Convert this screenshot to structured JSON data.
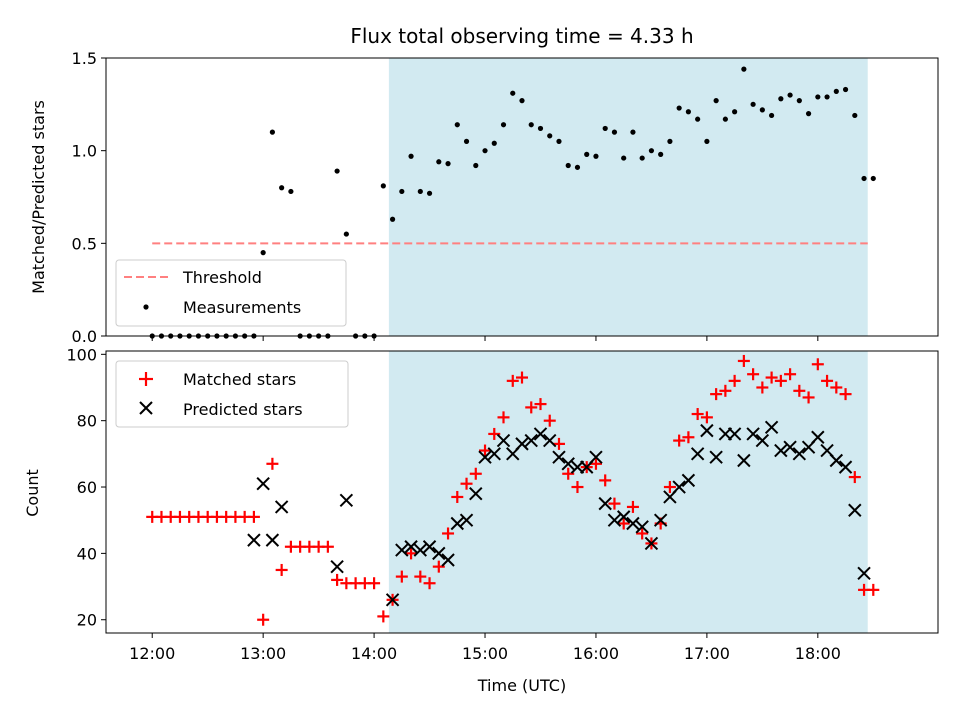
{
  "chart_data": [
    {
      "type": "scatter",
      "title": "Flux total observing time = 4.33 h",
      "xlabel": "",
      "ylabel": "Matched/Predicted stars",
      "xlim": [
        "11:35",
        "19:05"
      ],
      "ylim": [
        0,
        1.5
      ],
      "yticks": [
        0.0,
        0.5,
        1.0,
        1.5
      ],
      "ytick_labels": [
        "0.0",
        "0.5",
        "1.0",
        "1.5"
      ],
      "xticks": [
        "12:00",
        "13:00",
        "14:00",
        "15:00",
        "16:00",
        "17:00",
        "18:00"
      ],
      "shaded_span": {
        "start": "14:08",
        "end": "18:27",
        "color": "#add8e6"
      },
      "threshold": {
        "name": "Threshold",
        "value": 0.5,
        "start": "12:00",
        "end": "18:27",
        "color": "#ff8080"
      },
      "legend": {
        "placement": "lower-left",
        "entries": [
          "Threshold",
          "Measurements"
        ]
      },
      "series": [
        {
          "name": "Measurements",
          "marker": "dot",
          "color": "#000000",
          "x": [
            "12:00",
            "12:05",
            "12:10",
            "12:15",
            "12:20",
            "12:25",
            "12:30",
            "12:35",
            "12:40",
            "12:45",
            "12:50",
            "12:55",
            "13:00",
            "13:05",
            "13:10",
            "13:15",
            "13:20",
            "13:25",
            "13:30",
            "13:35",
            "13:40",
            "13:45",
            "13:50",
            "13:55",
            "14:00",
            "14:05",
            "14:10",
            "14:15",
            "14:20",
            "14:25",
            "14:30",
            "14:35",
            "14:40",
            "14:45",
            "14:50",
            "14:55",
            "15:00",
            "15:05",
            "15:10",
            "15:15",
            "15:20",
            "15:25",
            "15:30",
            "15:35",
            "15:40",
            "15:45",
            "15:50",
            "15:55",
            "16:00",
            "16:05",
            "16:10",
            "16:15",
            "16:20",
            "16:25",
            "16:30",
            "16:35",
            "16:40",
            "16:45",
            "16:50",
            "16:55",
            "17:00",
            "17:05",
            "17:10",
            "17:15",
            "17:20",
            "17:25",
            "17:30",
            "17:35",
            "17:40",
            "17:45",
            "17:50",
            "17:55",
            "18:00",
            "18:05",
            "18:10",
            "18:15",
            "18:20",
            "18:25",
            "18:30"
          ],
          "y": [
            0,
            0,
            0,
            0,
            0,
            0,
            0,
            0,
            0,
            0,
            0,
            0,
            0.45,
            1.1,
            0.8,
            0.78,
            0,
            0,
            0,
            0,
            0.89,
            0.55,
            0,
            0,
            0,
            0.81,
            0.63,
            0.78,
            0.97,
            0.78,
            0.77,
            0.94,
            0.93,
            1.14,
            1.05,
            0.92,
            1.0,
            1.04,
            1.14,
            1.31,
            1.27,
            1.14,
            1.12,
            1.08,
            1.05,
            0.92,
            0.91,
            0.98,
            0.97,
            1.12,
            1.1,
            0.96,
            1.1,
            0.96,
            1.0,
            0.98,
            1.05,
            1.23,
            1.21,
            1.17,
            1.05,
            1.27,
            1.17,
            1.21,
            1.44,
            1.25,
            1.22,
            1.19,
            1.28,
            1.3,
            1.27,
            1.2,
            1.29,
            1.29,
            1.32,
            1.33,
            1.19,
            0.85,
            0.85
          ]
        }
      ]
    },
    {
      "type": "scatter",
      "title": "",
      "xlabel": "Time (UTC)",
      "ylabel": "Count",
      "xlim": [
        "11:35",
        "19:05"
      ],
      "ylim": [
        16,
        101
      ],
      "yticks": [
        20,
        40,
        60,
        80,
        100
      ],
      "ytick_labels": [
        "20",
        "40",
        "60",
        "80",
        "100"
      ],
      "xticks": [
        "12:00",
        "13:00",
        "14:00",
        "15:00",
        "16:00",
        "17:00",
        "18:00"
      ],
      "xtick_labels": [
        "12:00",
        "13:00",
        "14:00",
        "15:00",
        "16:00",
        "17:00",
        "18:00"
      ],
      "shaded_span": {
        "start": "14:08",
        "end": "18:27",
        "color": "#add8e6"
      },
      "legend": {
        "placement": "upper-left",
        "entries": [
          "Matched stars",
          "Predicted stars"
        ]
      },
      "series": [
        {
          "name": "Matched stars",
          "marker": "plus",
          "color": "#ff0000",
          "x": [
            "12:00",
            "12:05",
            "12:10",
            "12:15",
            "12:20",
            "12:25",
            "12:30",
            "12:35",
            "12:40",
            "12:45",
            "12:50",
            "12:55",
            "13:00",
            "13:05",
            "13:10",
            "13:15",
            "13:20",
            "13:25",
            "13:30",
            "13:35",
            "13:40",
            "13:45",
            "13:50",
            "13:55",
            "14:00",
            "14:05",
            "14:10",
            "14:15",
            "14:20",
            "14:25",
            "14:30",
            "14:35",
            "14:40",
            "14:45",
            "14:50",
            "14:55",
            "15:00",
            "15:05",
            "15:10",
            "15:15",
            "15:20",
            "15:25",
            "15:30",
            "15:35",
            "15:40",
            "15:45",
            "15:50",
            "15:55",
            "16:00",
            "16:05",
            "16:10",
            "16:15",
            "16:20",
            "16:25",
            "16:30",
            "16:35",
            "16:40",
            "16:45",
            "16:50",
            "16:55",
            "17:00",
            "17:05",
            "17:10",
            "17:15",
            "17:20",
            "17:25",
            "17:30",
            "17:35",
            "17:40",
            "17:45",
            "17:50",
            "17:55",
            "18:00",
            "18:05",
            "18:10",
            "18:15",
            "18:20",
            "18:25",
            "18:30"
          ],
          "y": [
            51,
            51,
            51,
            51,
            51,
            51,
            51,
            51,
            51,
            51,
            51,
            51,
            20,
            67,
            35,
            42,
            42,
            42,
            42,
            42,
            32,
            31,
            31,
            31,
            31,
            21,
            26,
            33,
            40,
            33,
            31,
            36,
            46,
            57,
            61,
            64,
            71,
            76,
            81,
            92,
            93,
            84,
            85,
            80,
            73,
            64,
            60,
            66,
            67,
            62,
            55,
            49,
            54,
            46,
            43,
            49,
            60,
            74,
            75,
            82,
            81,
            88,
            89,
            92,
            98,
            94,
            90,
            93,
            92,
            94,
            89,
            87,
            97,
            92,
            90,
            88,
            63,
            29,
            29
          ]
        },
        {
          "name": "Predicted stars",
          "marker": "x",
          "color": "#000000",
          "x": [
            "12:55",
            "13:00",
            "13:05",
            "13:10",
            "13:40",
            "13:45",
            "14:10",
            "14:15",
            "14:20",
            "14:25",
            "14:30",
            "14:35",
            "14:40",
            "14:45",
            "14:50",
            "14:55",
            "15:00",
            "15:05",
            "15:10",
            "15:15",
            "15:20",
            "15:25",
            "15:30",
            "15:35",
            "15:40",
            "15:45",
            "15:50",
            "15:55",
            "16:00",
            "16:05",
            "16:10",
            "16:15",
            "16:20",
            "16:25",
            "16:30",
            "16:35",
            "16:40",
            "16:45",
            "16:50",
            "16:55",
            "17:00",
            "17:05",
            "17:10",
            "17:15",
            "17:20",
            "17:25",
            "17:30",
            "17:35",
            "17:40",
            "17:45",
            "17:50",
            "17:55",
            "18:00",
            "18:05",
            "18:10",
            "18:15",
            "18:20",
            "18:25"
          ],
          "y": [
            44,
            61,
            44,
            54,
            36,
            56,
            26,
            41,
            42,
            41,
            42,
            40,
            38,
            49,
            50,
            58,
            69,
            70,
            74,
            70,
            73,
            74,
            76,
            74,
            69,
            67,
            66,
            66,
            69,
            55,
            50,
            51,
            49,
            48,
            43,
            50,
            57,
            60,
            62,
            70,
            77,
            69,
            76,
            76,
            68,
            76,
            74,
            78,
            71,
            72,
            70,
            72,
            75,
            71,
            68,
            66,
            53,
            34
          ]
        }
      ]
    }
  ]
}
